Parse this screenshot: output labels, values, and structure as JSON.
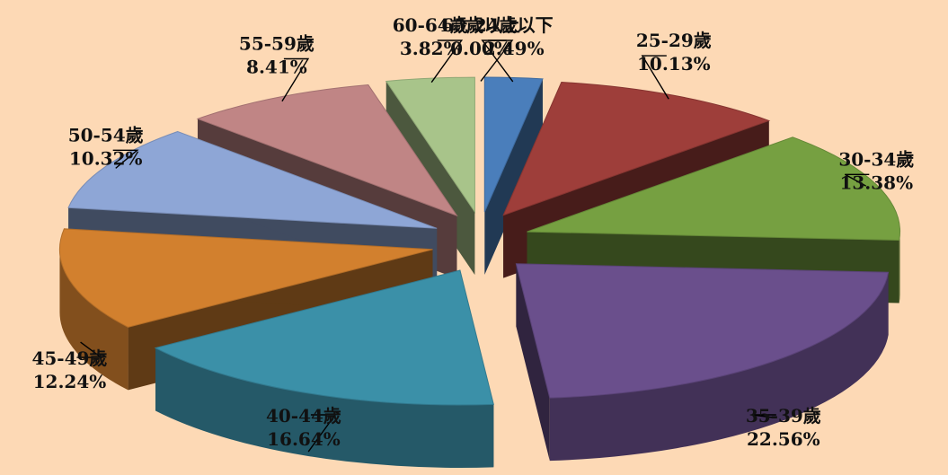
{
  "chart_data": {
    "type": "pie",
    "title": "",
    "three_d": true,
    "exploded": true,
    "slices": [
      {
        "label": "24歲以下",
        "value": 2.49,
        "value_label": "2.49%",
        "color": "#4a7ebb"
      },
      {
        "label": "25-29歲",
        "value": 10.13,
        "value_label": "10.13%",
        "color": "#9e3e3a"
      },
      {
        "label": "30-34歲",
        "value": 13.38,
        "value_label": "13.38%",
        "color": "#76a041"
      },
      {
        "label": "35-39歲",
        "value": 22.56,
        "value_label": "22.56%",
        "color": "#6a4f8c"
      },
      {
        "label": "40-44歲",
        "value": 16.64,
        "value_label": "16.64%",
        "color": "#3b90a8"
      },
      {
        "label": "45-49歲",
        "value": 12.24,
        "value_label": "12.24%",
        "color": "#d2802e"
      },
      {
        "label": "50-54歲",
        "value": 10.32,
        "value_label": "10.32%",
        "color": "#8ea6d6"
      },
      {
        "label": "55-59歲",
        "value": 8.41,
        "value_label": "8.41%",
        "color": "#c08585"
      },
      {
        "label": "60-64歲",
        "value": 3.82,
        "value_label": "3.82%",
        "color": "#a8c48a"
      },
      {
        "label": "65歲以上",
        "value": 0.0,
        "value_label": "0.00%",
        "color": "#8a8a8a"
      }
    ]
  }
}
